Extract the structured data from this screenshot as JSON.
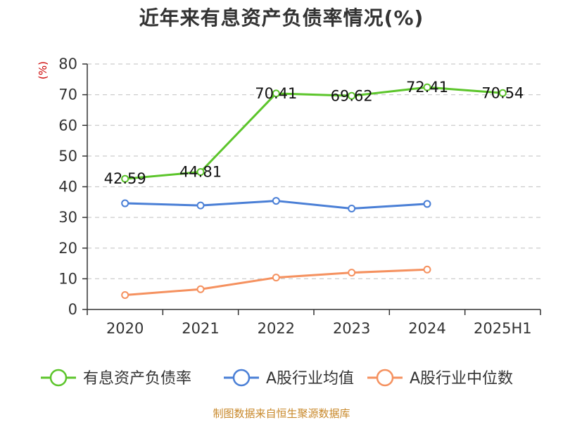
{
  "chart_data": {
    "type": "line",
    "title": "近年来有息资产负债率情况(%)",
    "ylabel": "(%)",
    "xlabel": "",
    "categories": [
      "2020",
      "2021",
      "2022",
      "2023",
      "2024",
      "2025H1"
    ],
    "ylim": [
      0,
      80
    ],
    "yticks": [
      0,
      10,
      20,
      30,
      40,
      50,
      60,
      70,
      80
    ],
    "grid": true,
    "legend_position": "bottom",
    "series": [
      {
        "name": "有息资产负债率",
        "color": "#5cc52b",
        "values": [
          42.59,
          44.81,
          70.41,
          69.62,
          72.41,
          70.54
        ],
        "labels": [
          "42.59",
          "44.81",
          "70.41",
          "69.62",
          "72.41",
          "70.54"
        ]
      },
      {
        "name": "A股行业均值",
        "color": "#4a7fd6",
        "values": [
          34.6,
          33.9,
          35.4,
          32.9,
          34.4,
          null
        ]
      },
      {
        "name": "A股行业中位数",
        "color": "#f5915f",
        "values": [
          4.7,
          6.6,
          10.4,
          12.0,
          13.0,
          null
        ]
      }
    ]
  },
  "source": "制图数据来自恒生聚源数据库"
}
